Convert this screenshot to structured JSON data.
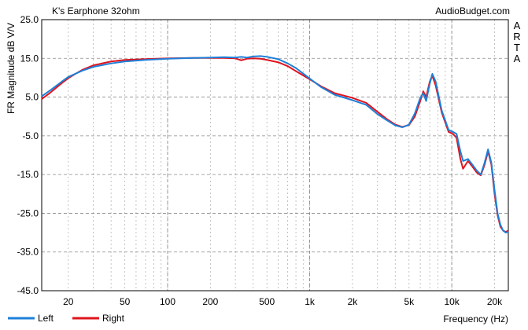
{
  "chart_data": {
    "type": "line",
    "title": "K's Earphone 32ohm",
    "watermark": "AudioBudget.com",
    "side_label": "ARTA",
    "ylabel": "FR Magnitude dB V/V",
    "xlabel": "Frequency (Hz)",
    "x_scale": "log",
    "xlim": [
      13,
      25000
    ],
    "ylim": [
      -45,
      25
    ],
    "y_ticks": [
      "25.0",
      "15.0",
      "5.0",
      "-5.0",
      "-15.0",
      "-25.0",
      "-35.0",
      "-45.0"
    ],
    "x_ticks": [
      {
        "value": 20,
        "label": "20"
      },
      {
        "value": 50,
        "label": "50"
      },
      {
        "value": 100,
        "label": "100"
      },
      {
        "value": 200,
        "label": "200"
      },
      {
        "value": 500,
        "label": "500"
      },
      {
        "value": 1000,
        "label": "1k"
      },
      {
        "value": 2000,
        "label": "2k"
      },
      {
        "value": 5000,
        "label": "5k"
      },
      {
        "value": 10000,
        "label": "10k"
      },
      {
        "value": 20000,
        "label": "20k"
      }
    ],
    "grid": true,
    "legend_position": "bottom-left",
    "series": [
      {
        "name": "Right",
        "color": "#e0141e",
        "points": [
          [
            13,
            4.5
          ],
          [
            15,
            6.2
          ],
          [
            18,
            8.6
          ],
          [
            20,
            9.9
          ],
          [
            25,
            12.0
          ],
          [
            30,
            13.2
          ],
          [
            40,
            14.2
          ],
          [
            50,
            14.6
          ],
          [
            70,
            14.8
          ],
          [
            100,
            15.0
          ],
          [
            150,
            15.1
          ],
          [
            200,
            15.1
          ],
          [
            250,
            15.1
          ],
          [
            300,
            15.0
          ],
          [
            330,
            14.5
          ],
          [
            360,
            14.9
          ],
          [
            400,
            15.0
          ],
          [
            450,
            14.9
          ],
          [
            500,
            14.6
          ],
          [
            600,
            14.0
          ],
          [
            700,
            13.0
          ],
          [
            800,
            11.7
          ],
          [
            1000,
            9.6
          ],
          [
            1200,
            7.8
          ],
          [
            1500,
            6.0
          ],
          [
            2000,
            4.8
          ],
          [
            2500,
            3.5
          ],
          [
            3000,
            1.2
          ],
          [
            3500,
            -0.7
          ],
          [
            4000,
            -2.1
          ],
          [
            4500,
            -2.7
          ],
          [
            5000,
            -2.2
          ],
          [
            5500,
            0.0
          ],
          [
            6000,
            4.0
          ],
          [
            6300,
            6.5
          ],
          [
            6600,
            5.0
          ],
          [
            7000,
            9.0
          ],
          [
            7300,
            10.5
          ],
          [
            7700,
            8.0
          ],
          [
            8500,
            1.0
          ],
          [
            9500,
            -4.0
          ],
          [
            10200,
            -4.5
          ],
          [
            10800,
            -5.5
          ],
          [
            11500,
            -11.0
          ],
          [
            12000,
            -13.5
          ],
          [
            13000,
            -11.5
          ],
          [
            14000,
            -13.0
          ],
          [
            15000,
            -14.5
          ],
          [
            16000,
            -15.2
          ],
          [
            17000,
            -12.5
          ],
          [
            18000,
            -9.0
          ],
          [
            19000,
            -12.5
          ],
          [
            20000,
            -20.0
          ],
          [
            21000,
            -25.5
          ],
          [
            22000,
            -28.5
          ],
          [
            23000,
            -29.5
          ],
          [
            24000,
            -29.8
          ],
          [
            25000,
            -29.5
          ]
        ]
      },
      {
        "name": "Left",
        "color": "#1e7fd8",
        "points": [
          [
            13,
            5.2
          ],
          [
            15,
            6.8
          ],
          [
            18,
            9.0
          ],
          [
            20,
            10.2
          ],
          [
            25,
            11.8
          ],
          [
            30,
            12.8
          ],
          [
            40,
            13.7
          ],
          [
            50,
            14.2
          ],
          [
            70,
            14.6
          ],
          [
            100,
            14.9
          ],
          [
            150,
            15.1
          ],
          [
            200,
            15.2
          ],
          [
            250,
            15.3
          ],
          [
            300,
            15.2
          ],
          [
            330,
            15.4
          ],
          [
            360,
            15.2
          ],
          [
            400,
            15.5
          ],
          [
            450,
            15.6
          ],
          [
            500,
            15.4
          ],
          [
            600,
            14.8
          ],
          [
            700,
            13.7
          ],
          [
            800,
            12.5
          ],
          [
            1000,
            9.8
          ],
          [
            1200,
            7.6
          ],
          [
            1500,
            5.6
          ],
          [
            2000,
            4.2
          ],
          [
            2500,
            3.0
          ],
          [
            3000,
            0.6
          ],
          [
            3500,
            -1.0
          ],
          [
            4000,
            -2.3
          ],
          [
            4500,
            -2.8
          ],
          [
            5000,
            -2.1
          ],
          [
            5500,
            0.8
          ],
          [
            6000,
            4.8
          ],
          [
            6300,
            6.0
          ],
          [
            6600,
            4.0
          ],
          [
            7000,
            8.5
          ],
          [
            7300,
            11.0
          ],
          [
            7700,
            9.0
          ],
          [
            8500,
            1.5
          ],
          [
            9500,
            -3.5
          ],
          [
            10200,
            -4.0
          ],
          [
            10800,
            -4.5
          ],
          [
            11500,
            -9.0
          ],
          [
            12000,
            -11.5
          ],
          [
            13000,
            -11.0
          ],
          [
            14000,
            -12.5
          ],
          [
            15000,
            -14.0
          ],
          [
            16000,
            -15.0
          ],
          [
            17000,
            -12.0
          ],
          [
            18000,
            -8.5
          ],
          [
            19000,
            -12.0
          ],
          [
            20000,
            -19.0
          ],
          [
            21000,
            -25.0
          ],
          [
            22000,
            -28.0
          ],
          [
            23000,
            -29.5
          ],
          [
            24000,
            -30.0
          ],
          [
            25000,
            -29.8
          ]
        ]
      }
    ],
    "legend": [
      {
        "name": "Left",
        "color": "#1e7fd8"
      },
      {
        "name": "Right",
        "color": "#e0141e"
      }
    ]
  }
}
